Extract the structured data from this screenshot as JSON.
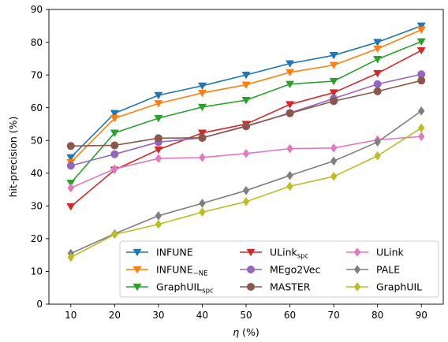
{
  "chart_data": {
    "type": "line",
    "xlabel_main": "η",
    "xlabel_unit": " (%)",
    "ylabel": "hit-precision (%)",
    "x": [
      10,
      20,
      30,
      40,
      50,
      60,
      70,
      80,
      90
    ],
    "xlim": [
      5,
      95
    ],
    "ylim": [
      0,
      90
    ],
    "xticks": [
      10,
      20,
      30,
      40,
      50,
      60,
      70,
      80,
      90
    ],
    "yticks": [
      0,
      10,
      20,
      30,
      40,
      50,
      60,
      70,
      80,
      90
    ],
    "grid": false,
    "legend_position": "bottom-right",
    "series": [
      {
        "name": "INFUNE",
        "name_main": "INFUNE",
        "name_sub": "",
        "color": "#1f77b4",
        "marker": "triangle-down",
        "values": [
          44.8,
          58.3,
          63.8,
          66.7,
          70.0,
          73.5,
          76.0,
          80.0,
          85.0
        ]
      },
      {
        "name": "INFUNE_−NE",
        "name_main": "INFUNE",
        "name_sub": "−NE",
        "color": "#ff7f0e",
        "marker": "triangle-down",
        "values": [
          43.3,
          56.8,
          61.3,
          64.5,
          67.0,
          70.8,
          73.0,
          78.0,
          83.8
        ]
      },
      {
        "name": "GraphUIL_spc",
        "name_main": "GraphUIL",
        "name_sub": "spc",
        "color": "#2ca02c",
        "marker": "triangle-down",
        "values": [
          37.0,
          52.3,
          56.8,
          60.2,
          62.3,
          67.2,
          68.1,
          74.8,
          80.2
        ]
      },
      {
        "name": "ULink_spc",
        "name_main": "ULink",
        "name_sub": "spc",
        "color": "#d62728",
        "marker": "triangle-down",
        "values": [
          29.8,
          41.0,
          47.2,
          52.3,
          55.0,
          61.0,
          64.6,
          70.5,
          77.5
        ]
      },
      {
        "name": "MEgo2Vec",
        "name_main": "MEgo2Vec",
        "name_sub": "",
        "color": "#9467bd",
        "marker": "circle",
        "values": [
          42.3,
          45.8,
          49.5,
          50.8,
          54.3,
          58.4,
          62.8,
          67.2,
          70.2
        ]
      },
      {
        "name": "MASTER",
        "name_main": "MASTER",
        "name_sub": "",
        "color": "#8c564b",
        "marker": "circle",
        "values": [
          48.3,
          48.5,
          50.7,
          50.8,
          54.4,
          58.3,
          62.0,
          65.0,
          68.3
        ]
      },
      {
        "name": "ULink",
        "name_main": "ULink",
        "name_sub": "",
        "color": "#e377c2",
        "marker": "diamond",
        "values": [
          35.5,
          41.3,
          44.5,
          44.8,
          46.0,
          47.5,
          47.7,
          50.2,
          51.2
        ]
      },
      {
        "name": "PALE",
        "name_main": "PALE",
        "name_sub": "",
        "color": "#7f7f7f",
        "marker": "diamond",
        "values": [
          15.5,
          21.5,
          27.0,
          30.8,
          34.7,
          39.3,
          43.7,
          49.5,
          59.0
        ]
      },
      {
        "name": "GraphUIL",
        "name_main": "GraphUIL",
        "name_sub": "",
        "color": "#bcbd22",
        "marker": "diamond",
        "values": [
          14.3,
          21.3,
          24.4,
          28.1,
          31.3,
          36.0,
          39.0,
          45.3,
          53.8
        ]
      }
    ]
  }
}
